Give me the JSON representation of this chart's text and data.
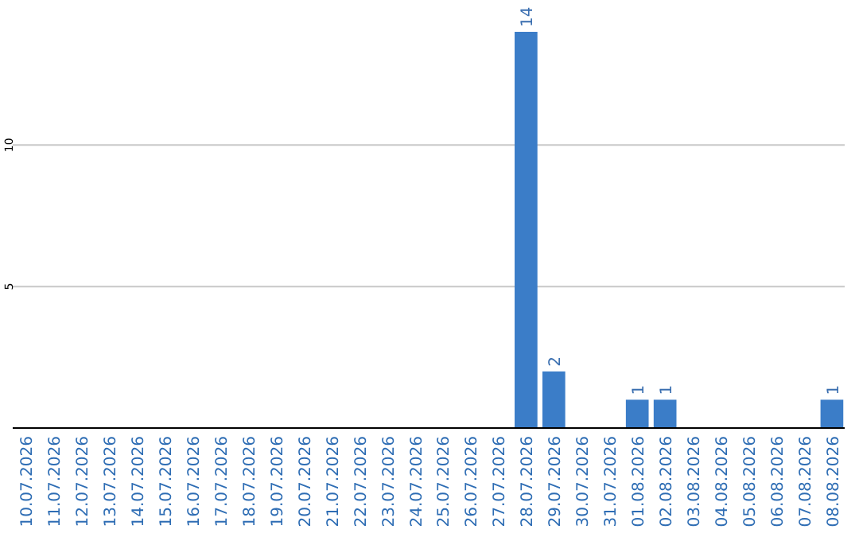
{
  "chart_data": {
    "type": "bar",
    "categories": [
      "10.07.2026",
      "11.07.2026",
      "12.07.2026",
      "13.07.2026",
      "14.07.2026",
      "15.07.2026",
      "16.07.2026",
      "17.07.2026",
      "18.07.2026",
      "19.07.2026",
      "20.07.2026",
      "21.07.2026",
      "22.07.2026",
      "23.07.2026",
      "24.07.2026",
      "25.07.2026",
      "26.07.2026",
      "27.07.2026",
      "28.07.2026",
      "29.07.2026",
      "30.07.2026",
      "31.07.2026",
      "01.08.2026",
      "02.08.2026",
      "03.08.2026",
      "04.08.2026",
      "05.08.2026",
      "06.08.2026",
      "07.08.2026",
      "08.08.2026"
    ],
    "values": [
      0,
      0,
      0,
      0,
      0,
      0,
      0,
      0,
      0,
      0,
      0,
      0,
      0,
      0,
      0,
      0,
      0,
      0,
      14,
      2,
      0,
      0,
      1,
      1,
      0,
      0,
      0,
      0,
      0,
      1
    ],
    "value_labels": [
      null,
      null,
      null,
      null,
      null,
      null,
      null,
      null,
      null,
      null,
      null,
      null,
      null,
      null,
      null,
      null,
      null,
      null,
      "14",
      "2",
      null,
      null,
      "1",
      "1",
      null,
      null,
      null,
      null,
      null,
      "1"
    ],
    "color": "#3b7dc8",
    "ylim": [
      0,
      14
    ],
    "yticks": [
      5,
      10
    ],
    "grid": "y"
  }
}
